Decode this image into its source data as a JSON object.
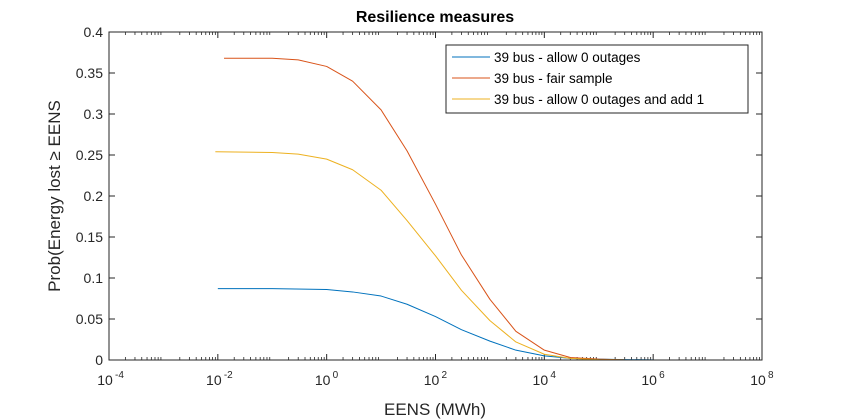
{
  "chart_data": {
    "type": "line",
    "title": "Resilience measures",
    "xlabel": "EENS (MWh)",
    "ylabel": "Prob(Energy lost ≥ EENS",
    "x_scale": "log",
    "xlim": [
      0.0001,
      100000000
    ],
    "ylim": [
      0,
      0.4
    ],
    "x_ticks": [
      {
        "base": "10",
        "exp": "-4"
      },
      {
        "base": "10",
        "exp": "-2"
      },
      {
        "base": "10",
        "exp": "0"
      },
      {
        "base": "10",
        "exp": "2"
      },
      {
        "base": "10",
        "exp": "4"
      },
      {
        "base": "10",
        "exp": "6"
      },
      {
        "base": "10",
        "exp": "8"
      }
    ],
    "y_ticks": [
      "0",
      "0.05",
      "0.1",
      "0.15",
      "0.2",
      "0.25",
      "0.3",
      "0.35",
      "0.4"
    ],
    "grid": false,
    "legend_position": "top-right",
    "series": [
      {
        "name": "39 bus - allow 0 outages",
        "color": "#0072BD",
        "x": [
          0.01,
          0.1,
          1,
          3,
          10,
          30,
          100,
          300,
          1000,
          3000,
          10000,
          30000,
          100000,
          300000,
          1000000
        ],
        "y": [
          0.087,
          0.087,
          0.086,
          0.083,
          0.078,
          0.068,
          0.053,
          0.037,
          0.023,
          0.012,
          0.005,
          0.002,
          0.001,
          0.0005,
          0.0002
        ]
      },
      {
        "name": "39 bus - fair sample",
        "color": "#D95319",
        "x": [
          0.013,
          0.1,
          0.3,
          1,
          3,
          10,
          30,
          100,
          300,
          1000,
          3000,
          10000,
          30000,
          100000,
          300000
        ],
        "y": [
          0.368,
          0.368,
          0.366,
          0.358,
          0.34,
          0.305,
          0.255,
          0.19,
          0.128,
          0.074,
          0.035,
          0.012,
          0.003,
          0.001,
          0.0002
        ]
      },
      {
        "name": "39 bus - allow 0 outages and add 1",
        "color": "#EDB120",
        "x": [
          0.009,
          0.1,
          0.3,
          1,
          3,
          10,
          30,
          100,
          300,
          1000,
          3000,
          10000,
          30000,
          100000,
          300000
        ],
        "y": [
          0.254,
          0.253,
          0.251,
          0.245,
          0.232,
          0.207,
          0.17,
          0.127,
          0.085,
          0.048,
          0.022,
          0.007,
          0.002,
          0.0005,
          0.0002
        ]
      }
    ]
  }
}
